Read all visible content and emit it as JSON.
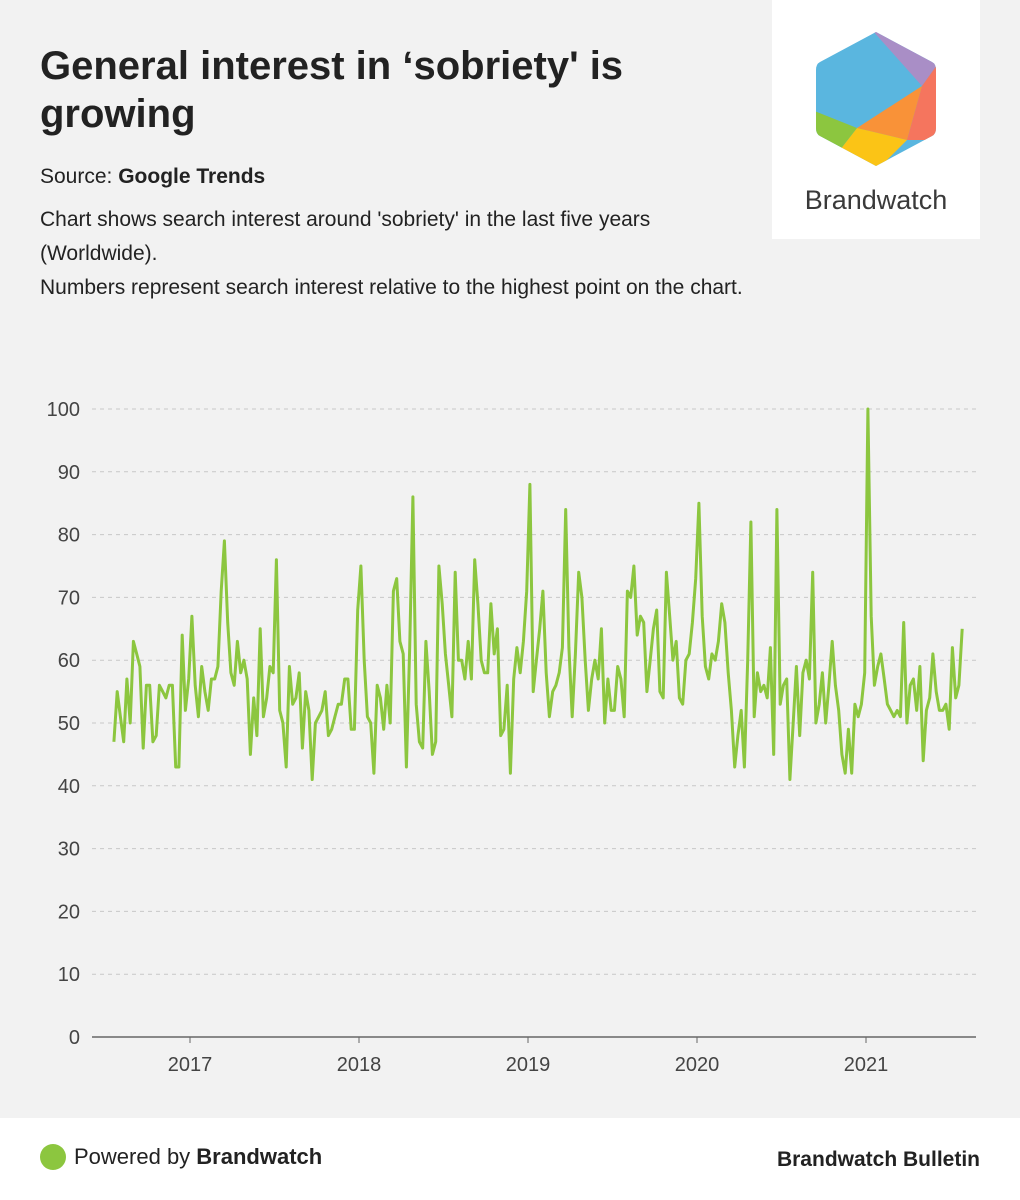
{
  "header": {
    "title": "General interest in ‘sobriety' is growing",
    "source_label": "Source: ",
    "source_value": "Google Trends",
    "description_1": "Chart shows search interest around 'sobriety' in the last five years (Worldwide).",
    "description_2": "Numbers represent search interest relative to the highest point on the chart."
  },
  "logo": {
    "text": "Brandwatch",
    "icon": "brandwatch-hexagon-logo"
  },
  "footer": {
    "powered_prefix": "Powered by ",
    "powered_brand": "Brandwatch",
    "bulletin": "Brandwatch Bulletin"
  },
  "colors": {
    "line": "#8cc63f",
    "grid": "#c8c8c8",
    "axis": "#666666",
    "background": "#f2f2f2"
  },
  "chart_data": {
    "type": "line",
    "title": "",
    "xlabel": "",
    "ylabel": "",
    "ylim": [
      0,
      100
    ],
    "yticks": [
      0,
      10,
      20,
      30,
      40,
      50,
      60,
      70,
      80,
      90,
      100
    ],
    "xticks": [
      "2017",
      "2018",
      "2019",
      "2020",
      "2021"
    ],
    "x_start_year": 2016.55,
    "x_step_years": 0.01923,
    "grid": true,
    "series": [
      {
        "name": "sobriety",
        "values": [
          47,
          55,
          51,
          47,
          57,
          50,
          63,
          61,
          59,
          46,
          56,
          56,
          47,
          48,
          56,
          55,
          54,
          56,
          56,
          43,
          43,
          64,
          52,
          57,
          67,
          56,
          51,
          59,
          55,
          52,
          57,
          57,
          59,
          71,
          79,
          66,
          58,
          56,
          63,
          58,
          60,
          57,
          45,
          54,
          48,
          65,
          51,
          54,
          59,
          58,
          76,
          52,
          50,
          43,
          59,
          53,
          54,
          58,
          46,
          55,
          52,
          41,
          50,
          51,
          52,
          55,
          48,
          49,
          51,
          53,
          53,
          57,
          57,
          49,
          49,
          68,
          75,
          60,
          51,
          50,
          42,
          56,
          54,
          49,
          56,
          50,
          71,
          73,
          63,
          61,
          43,
          62,
          86,
          53,
          47,
          46,
          63,
          55,
          45,
          47,
          75,
          69,
          61,
          56,
          51,
          74,
          60,
          60,
          57,
          63,
          57,
          76,
          69,
          60,
          58,
          58,
          69,
          61,
          65,
          48,
          49,
          56,
          42,
          57,
          62,
          58,
          63,
          71,
          88,
          55,
          60,
          65,
          71,
          58,
          51,
          55,
          56,
          58,
          62,
          84,
          62,
          51,
          61,
          74,
          70,
          60,
          52,
          57,
          60,
          57,
          65,
          50,
          57,
          52,
          52,
          59,
          57,
          51,
          71,
          70,
          75,
          64,
          67,
          66,
          55,
          60,
          65,
          68,
          55,
          54,
          74,
          67,
          60,
          63,
          54,
          53,
          60,
          61,
          66,
          73,
          85,
          67,
          59,
          57,
          61,
          60,
          63,
          69,
          66,
          58,
          52,
          43,
          48,
          52,
          43,
          60,
          82,
          51,
          58,
          55,
          56,
          54,
          62,
          45,
          84,
          53,
          56,
          57,
          41,
          50,
          59,
          48,
          58,
          60,
          57,
          74,
          50,
          53,
          58,
          50,
          56,
          63,
          56,
          52,
          45,
          42,
          49,
          42,
          53,
          51,
          53,
          58,
          100,
          67,
          56,
          59,
          61,
          57,
          53,
          52,
          51,
          52,
          51,
          66,
          50,
          56,
          57,
          52,
          59,
          44,
          52,
          54,
          61,
          55,
          52,
          52,
          53,
          49,
          62,
          54,
          56,
          65
        ]
      }
    ]
  }
}
